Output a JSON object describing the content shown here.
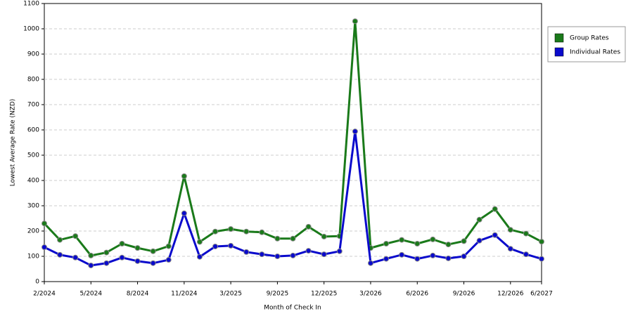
{
  "chart_data": {
    "type": "line",
    "x_label": "Month of Check In",
    "y_label": "Lowest Average Rate (NZD)",
    "categories": [
      "2/2024",
      null,
      null,
      "5/2024",
      null,
      null,
      "8/2024",
      null,
      null,
      "11/2024",
      null,
      null,
      "3/2025",
      null,
      null,
      "9/2025",
      null,
      null,
      "12/2025",
      null,
      null,
      "3/2026",
      null,
      null,
      "6/2026",
      null,
      null,
      "9/2026",
      null,
      null,
      "12/2026",
      null,
      "6/2027"
    ],
    "series": [
      {
        "name": "Group Rates",
        "color": "#1a7a1a",
        "values": [
          230,
          165,
          180,
          103,
          115,
          150,
          133,
          120,
          140,
          417,
          157,
          198,
          208,
          198,
          195,
          170,
          170,
          217,
          178,
          180,
          1030,
          133,
          150,
          165,
          150,
          167,
          147,
          160,
          245,
          287,
          205,
          190,
          158
        ]
      },
      {
        "name": "Individual Rates",
        "color": "#0a0acc",
        "values": [
          136,
          106,
          95,
          64,
          73,
          95,
          81,
          73,
          86,
          270,
          98,
          139,
          142,
          117,
          108,
          100,
          103,
          122,
          108,
          120,
          594,
          73,
          90,
          106,
          90,
          103,
          92,
          100,
          162,
          184,
          130,
          108,
          90
        ]
      }
    ],
    "ylim": [
      0,
      1100
    ],
    "yticks": [
      0,
      100,
      200,
      300,
      400,
      500,
      600,
      700,
      800,
      900,
      1000,
      1100
    ],
    "grid": true,
    "legend": "right"
  }
}
